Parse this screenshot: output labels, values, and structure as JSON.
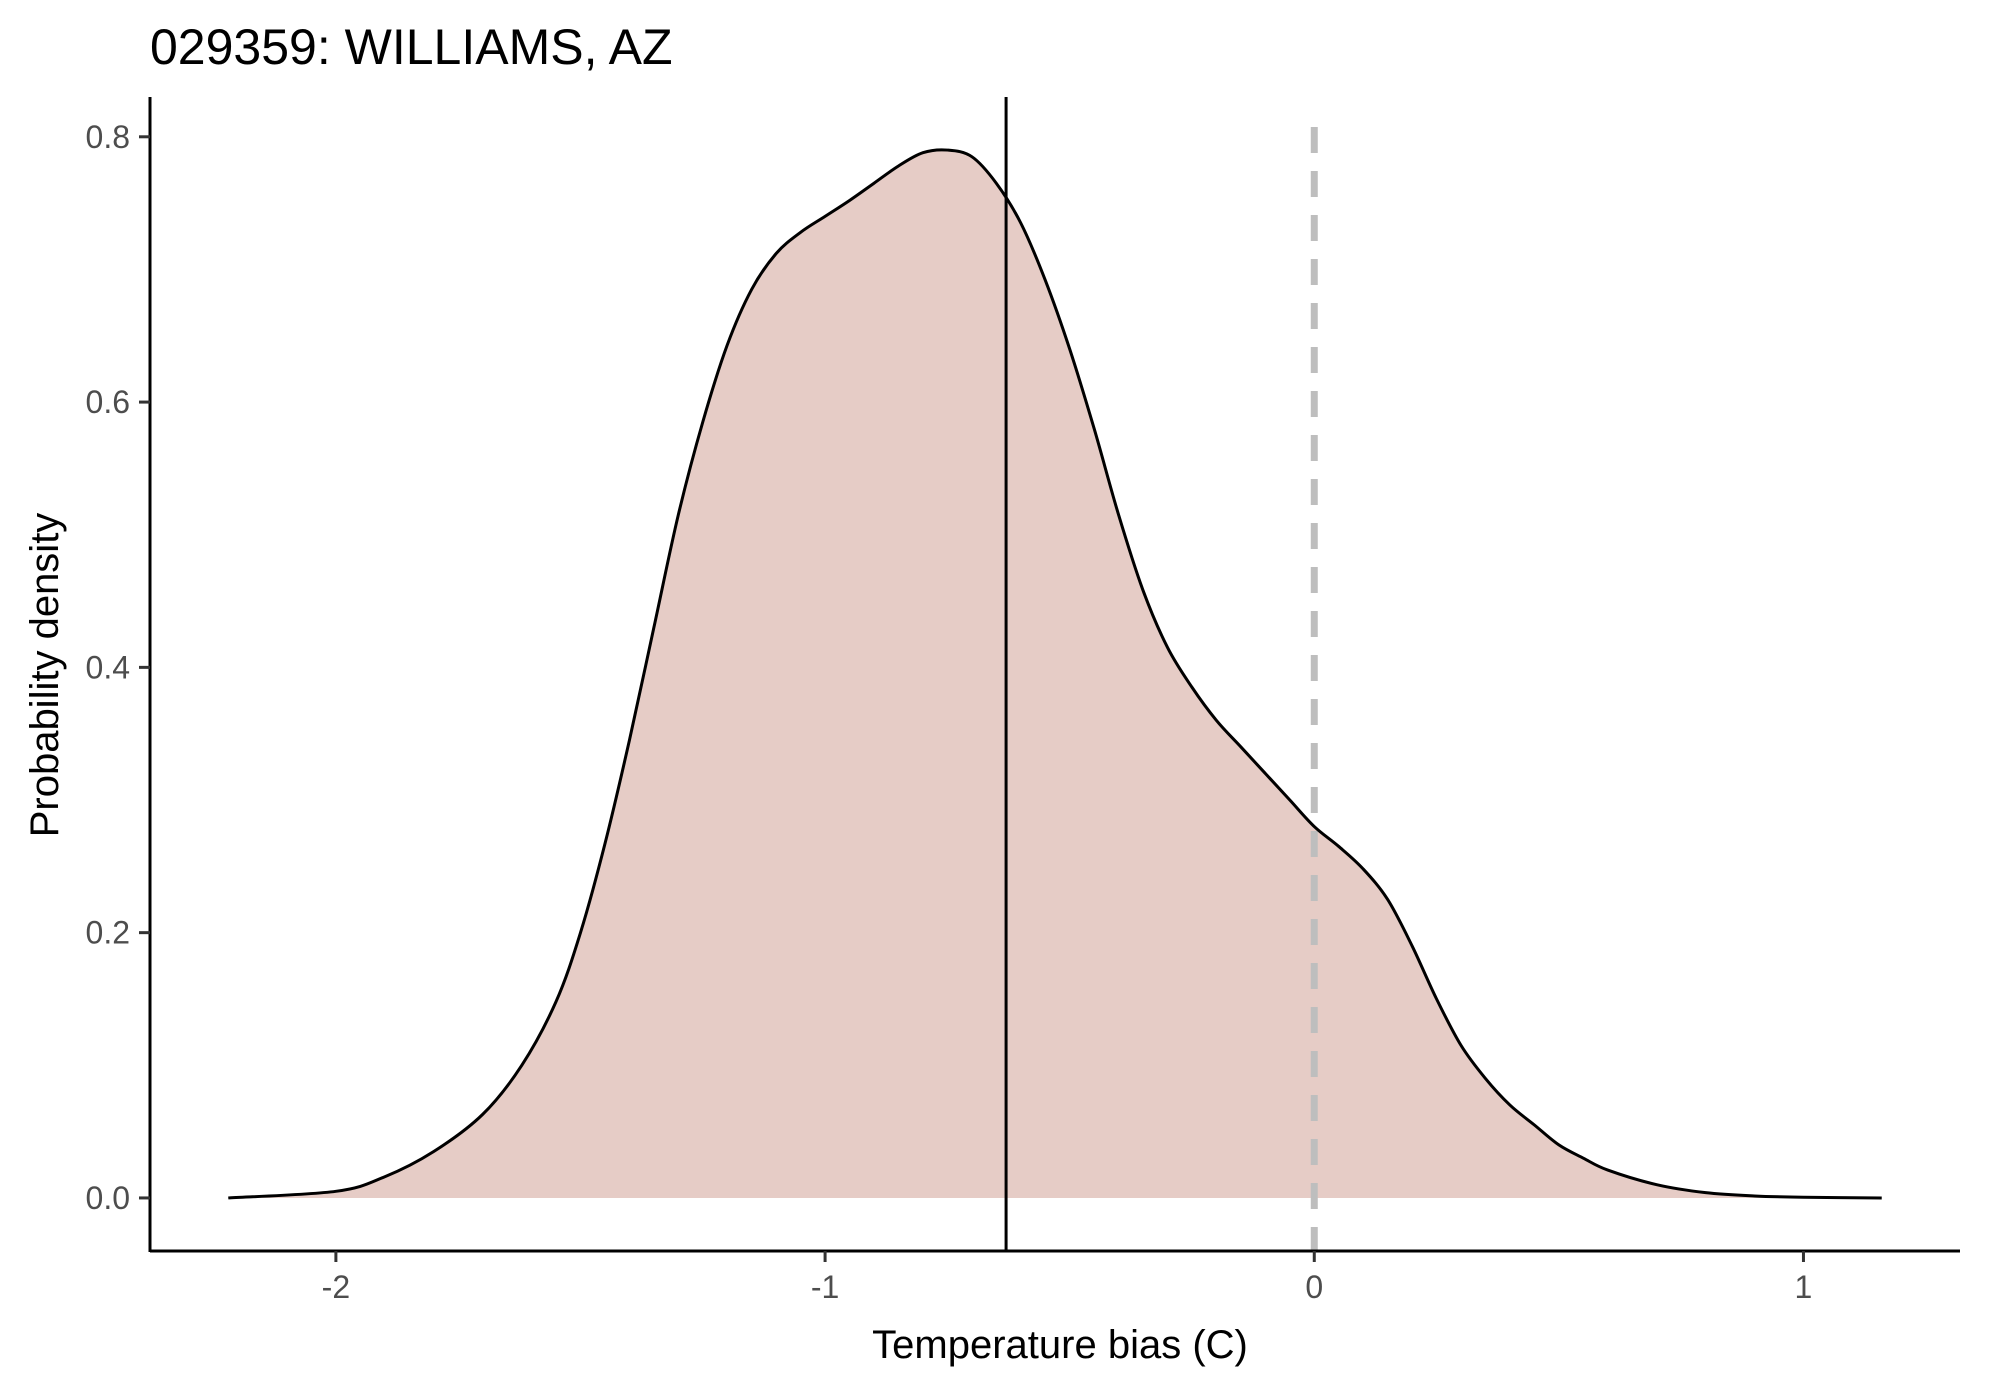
{
  "chart_data": {
    "type": "area",
    "title": "029359: WILLIAMS, AZ",
    "xlabel": "Temperature bias (C)",
    "ylabel": "Probability density",
    "xlim": [
      -2.38,
      1.32
    ],
    "ylim": [
      -0.04,
      0.83
    ],
    "x_ticks": [
      -2,
      -1,
      0,
      1
    ],
    "x_tick_labels": [
      "-2",
      "-1",
      "0",
      "1"
    ],
    "y_ticks": [
      0.0,
      0.2,
      0.4,
      0.6,
      0.8
    ],
    "y_tick_labels": [
      "0.0",
      "0.2",
      "0.4",
      "0.6",
      "0.8"
    ],
    "grid": false,
    "fill_color": "#e6ccc6",
    "line_color": "#000000",
    "reference_lines": [
      {
        "name": "mean",
        "x": -0.63,
        "style": "solid",
        "color": "#000000"
      },
      {
        "name": "zero",
        "x": 0.0,
        "style": "dashed",
        "color": "#bebebe"
      }
    ],
    "density": {
      "x": [
        -2.22,
        -2.0,
        -1.9,
        -1.8,
        -1.7,
        -1.62,
        -1.55,
        -1.5,
        -1.45,
        -1.4,
        -1.35,
        -1.3,
        -1.25,
        -1.2,
        -1.15,
        -1.1,
        -1.05,
        -1.0,
        -0.95,
        -0.9,
        -0.85,
        -0.8,
        -0.75,
        -0.7,
        -0.65,
        -0.6,
        -0.55,
        -0.5,
        -0.45,
        -0.4,
        -0.35,
        -0.3,
        -0.25,
        -0.2,
        -0.15,
        -0.1,
        -0.05,
        0.0,
        0.05,
        0.1,
        0.15,
        0.2,
        0.25,
        0.3,
        0.35,
        0.4,
        0.45,
        0.5,
        0.55,
        0.6,
        0.7,
        0.8,
        0.9,
        1.0,
        1.16
      ],
      "y": [
        0.0,
        0.005,
        0.016,
        0.035,
        0.063,
        0.1,
        0.148,
        0.2,
        0.267,
        0.345,
        0.43,
        0.515,
        0.585,
        0.643,
        0.685,
        0.712,
        0.728,
        0.74,
        0.752,
        0.765,
        0.778,
        0.788,
        0.79,
        0.785,
        0.765,
        0.735,
        0.692,
        0.64,
        0.58,
        0.515,
        0.458,
        0.415,
        0.385,
        0.36,
        0.34,
        0.32,
        0.3,
        0.28,
        0.265,
        0.248,
        0.225,
        0.19,
        0.15,
        0.115,
        0.09,
        0.07,
        0.055,
        0.04,
        0.03,
        0.021,
        0.01,
        0.004,
        0.0015,
        0.0005,
        0.0
      ]
    }
  }
}
